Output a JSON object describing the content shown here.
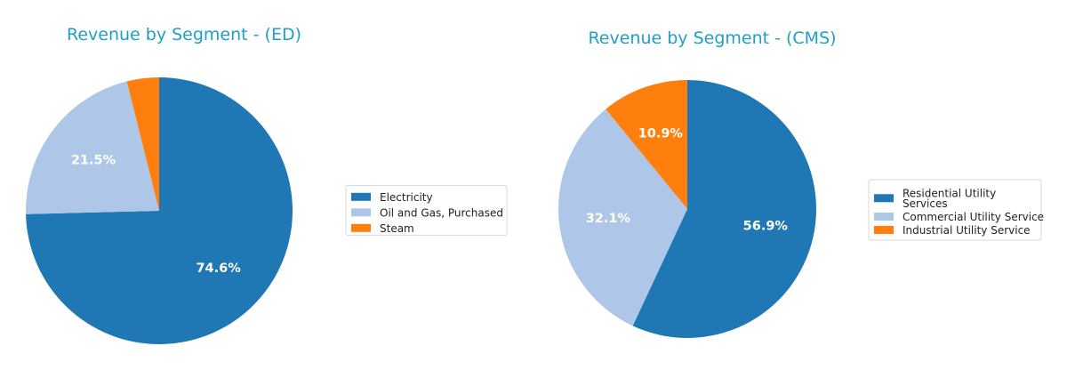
{
  "chart_data": [
    {
      "type": "pie",
      "title": "Revenue by Segment - (ED)",
      "slices": [
        {
          "label": "Electricity",
          "value": 74.6,
          "pct_label": "74.6%",
          "color": "#1f77b4"
        },
        {
          "label": "Oil and Gas, Purchased",
          "value": 21.5,
          "pct_label": "21.5%",
          "color": "#aec7e8"
        },
        {
          "label": "Steam",
          "value": 3.9,
          "pct_label": "",
          "color": "#ff7f0e"
        }
      ],
      "legend_entries": [
        [
          "Electricity"
        ],
        [
          "Oil and Gas, Purchased"
        ],
        [
          "Steam"
        ]
      ],
      "legend_position": "right"
    },
    {
      "type": "pie",
      "title": "Revenue by Segment - (CMS)",
      "slices": [
        {
          "label": "Residential Utility Services",
          "value": 56.9,
          "pct_label": "56.9%",
          "color": "#1f77b4"
        },
        {
          "label": "Commercial Utility Service",
          "value": 32.1,
          "pct_label": "32.1%",
          "color": "#aec7e8"
        },
        {
          "label": "Industrial Utility Service",
          "value": 10.9,
          "pct_label": "10.9%",
          "color": "#ff7f0e"
        }
      ],
      "legend_entries": [
        [
          "Residential Utility",
          "Services"
        ],
        [
          "Commercial Utility Service"
        ],
        [
          "Industrial Utility Service"
        ]
      ],
      "legend_position": "right"
    }
  ]
}
